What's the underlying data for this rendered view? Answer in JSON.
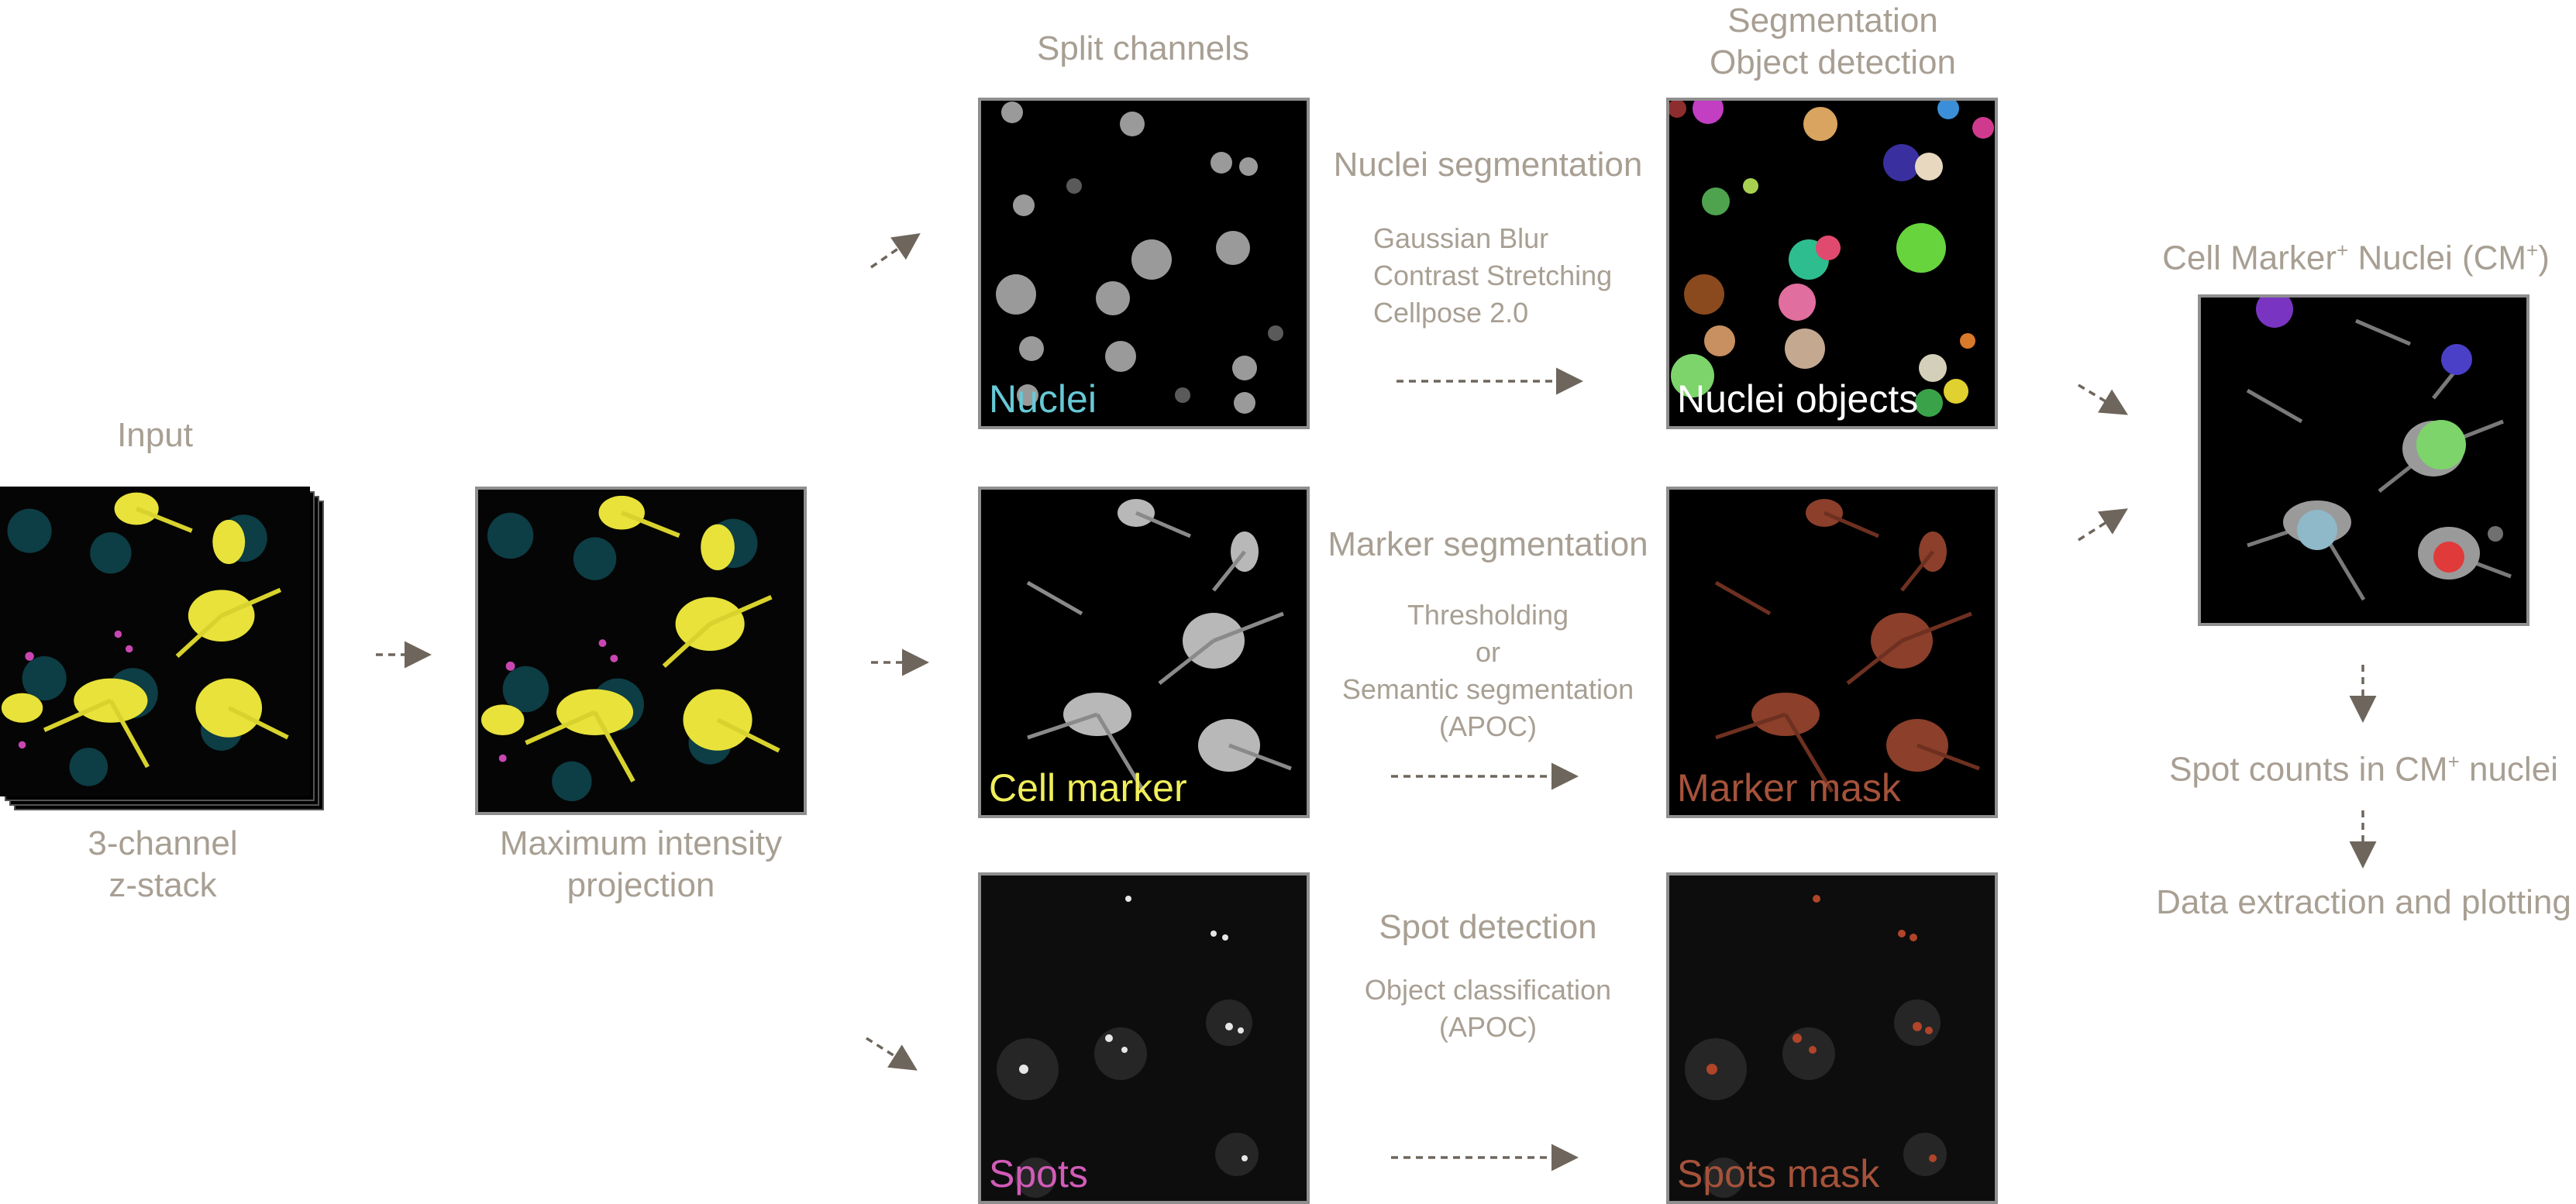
{
  "colors": {
    "label": "#a89f93",
    "arrow": "#6e665c",
    "nuclei_caption": "#67c9d6",
    "marker_caption": "#f1ef5a",
    "spots_caption": "#d25bb8",
    "nuclei_objects_caption": "#ffffff",
    "mask_caption": "#a5523a"
  },
  "input": {
    "title": "Input",
    "caption_line1": "3-channel",
    "caption_line2": "z-stack"
  },
  "mip": {
    "caption_line1": "Maximum intensity",
    "caption_line2": "projection"
  },
  "split": {
    "title": "Split channels",
    "nuclei_label": "Nuclei",
    "marker_label": "Cell marker",
    "spots_label": "Spots"
  },
  "nuclei_step": {
    "title": "Nuclei segmentation",
    "steps": [
      "Gaussian Blur",
      "Contrast Stretching",
      "Cellpose 2.0"
    ]
  },
  "marker_step": {
    "title": "Marker segmentation",
    "steps": [
      "Thresholding",
      "or",
      "Semantic segmentation",
      "(APOC)"
    ]
  },
  "spot_step": {
    "title": "Spot detection",
    "steps": [
      "Object classification",
      "(APOC)"
    ]
  },
  "segmentation": {
    "title_line1": "Segmentation",
    "title_line2": "Object detection",
    "nuclei_objects_label": "Nuclei objects",
    "marker_mask_label": "Marker mask",
    "spots_mask_label": "Spots mask"
  },
  "result": {
    "title_pre": "Cell Marker",
    "title_sup1": "+",
    "title_mid": " Nuclei (CM",
    "title_sup2": "+",
    "title_post": ")",
    "counts_pre": "Spot counts in CM",
    "counts_sup": "+",
    "counts_post": " nuclei",
    "final": "Data extraction and plotting"
  }
}
